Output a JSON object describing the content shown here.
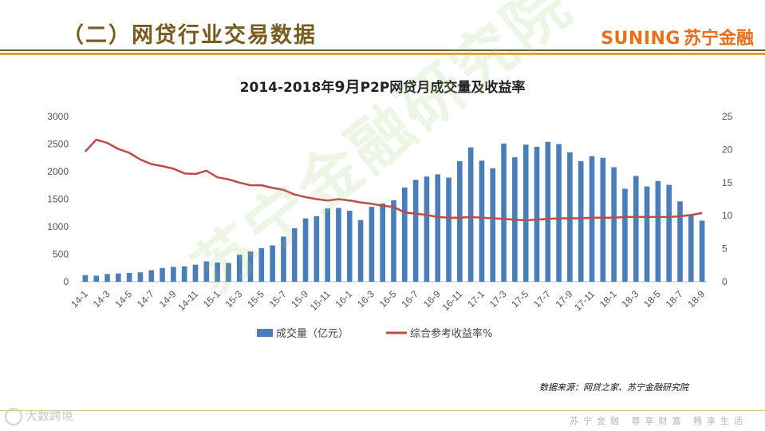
{
  "header": {
    "title": "（二）网贷行业交易数据"
  },
  "brand": {
    "en": "SUNING",
    "cn": "苏宁金融"
  },
  "source_note": "数据来源：网贷之家、苏宁金融研究院",
  "footer": {
    "slogan": "苏宁金融 尊享财富 畅享生活",
    "logo_text": "大数跨境"
  },
  "watermark": "苏宁金融研究院",
  "colors": {
    "bar": "#4a7ebb",
    "line": "#be4b48",
    "title": "#7a5b1f",
    "brand": "#e8701a"
  },
  "chart_data": {
    "type": "bar+line",
    "title_prefix": "2014-2018年",
    "title_month": "9月",
    "title_suffix": "P2P网贷月成交量及收益率",
    "categories": [
      "14-1",
      "14-2",
      "14-3",
      "14-4",
      "14-5",
      "14-6",
      "14-7",
      "14-8",
      "14-9",
      "14-10",
      "14-11",
      "14-12",
      "15-1",
      "15-2",
      "15-3",
      "15-4",
      "15-5",
      "15-6",
      "15-7",
      "15-8",
      "15-9",
      "15-10",
      "15-11",
      "15-12",
      "16-1",
      "16-2",
      "16-3",
      "16-4",
      "16-5",
      "16-6",
      "16-7",
      "16-8",
      "16-9",
      "16-10",
      "16-11",
      "16-12",
      "17-1",
      "17-2",
      "17-3",
      "17-4",
      "17-5",
      "17-6",
      "17-7",
      "17-8",
      "17-9",
      "17-10",
      "17-11",
      "17-12",
      "18-1",
      "18-2",
      "18-3",
      "18-4",
      "18-5",
      "18-6",
      "18-7",
      "18-8",
      "18-9"
    ],
    "x_tick_labels": [
      "14-1",
      "14-3",
      "14-5",
      "14-7",
      "14-9",
      "14-11",
      "15-1",
      "15-3",
      "15-5",
      "15-7",
      "15-9",
      "15-11",
      "16-1",
      "16-3",
      "16-5",
      "16-7",
      "16-9",
      "16-11",
      "17-1",
      "17-3",
      "17-5",
      "17-7",
      "17-9",
      "17-11",
      "18-1",
      "18-3",
      "18-5",
      "18-7",
      "18-9"
    ],
    "series": [
      {
        "name": "成交量（亿元）",
        "type": "bar",
        "axis": "left",
        "values": [
          120,
          110,
          140,
          150,
          160,
          170,
          210,
          250,
          270,
          280,
          310,
          370,
          350,
          340,
          490,
          550,
          610,
          660,
          820,
          970,
          1150,
          1190,
          1330,
          1340,
          1290,
          1120,
          1360,
          1420,
          1480,
          1710,
          1850,
          1910,
          1950,
          1890,
          2190,
          2440,
          2200,
          2060,
          2510,
          2260,
          2490,
          2450,
          2540,
          2500,
          2350,
          2190,
          2280,
          2250,
          2080,
          1690,
          1920,
          1730,
          1830,
          1760,
          1460,
          1200,
          1110
        ]
      },
      {
        "name": "综合参考收益率%",
        "type": "line",
        "axis": "right",
        "values": [
          19.7,
          21.5,
          21.0,
          20.1,
          19.5,
          18.5,
          17.8,
          17.5,
          17.1,
          16.4,
          16.3,
          16.8,
          15.8,
          15.5,
          15.0,
          14.6,
          14.6,
          14.2,
          13.9,
          13.2,
          12.8,
          12.5,
          12.3,
          12.5,
          12.3,
          12.0,
          11.8,
          11.5,
          11.3,
          10.5,
          10.3,
          10.1,
          9.8,
          9.7,
          9.7,
          9.8,
          9.7,
          9.6,
          9.5,
          9.4,
          9.3,
          9.4,
          9.5,
          9.6,
          9.6,
          9.6,
          9.7,
          9.7,
          9.7,
          9.8,
          9.8,
          9.8,
          9.8,
          9.8,
          9.9,
          10.1,
          10.4
        ]
      }
    ],
    "y_left": {
      "min": 0,
      "max": 3000,
      "ticks": [
        0,
        500,
        1000,
        1500,
        2000,
        2500,
        3000
      ]
    },
    "y_right": {
      "min": 0,
      "max": 25,
      "ticks": [
        0,
        5,
        10,
        15,
        20,
        25
      ]
    },
    "legend_position": "bottom"
  }
}
